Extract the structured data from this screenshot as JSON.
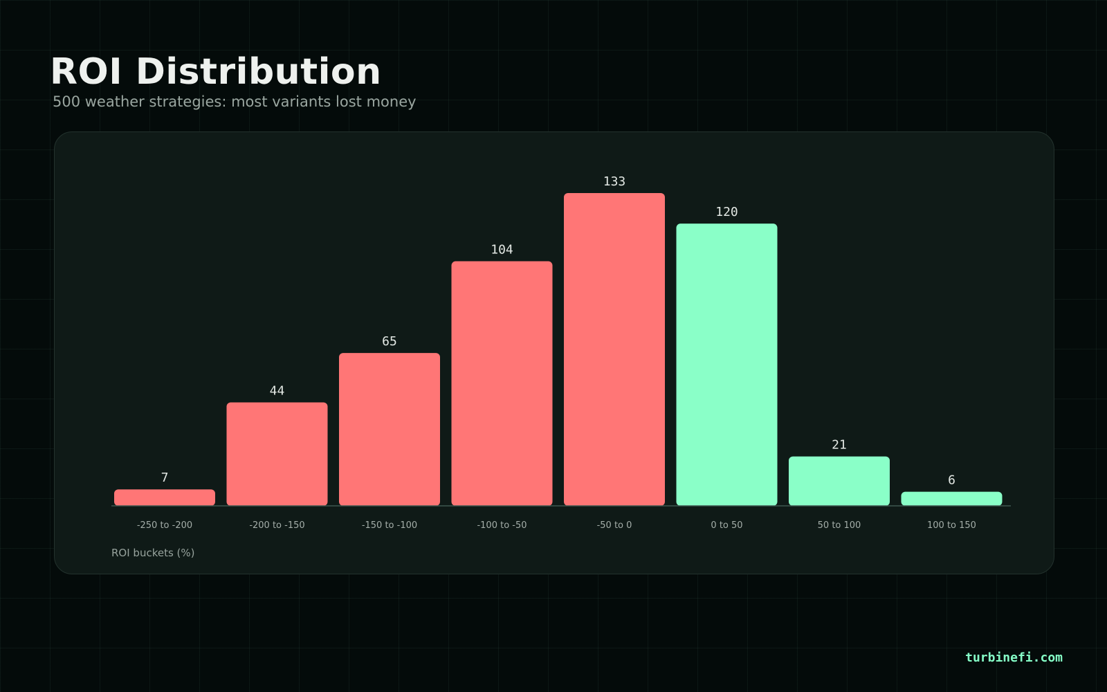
{
  "header": {
    "title": "ROI Distribution",
    "subtitle": "500 weather strategies: most variants lost money"
  },
  "footer": {
    "brand": "turbinefi.com"
  },
  "chart_data": {
    "type": "bar",
    "title": "ROI Distribution",
    "subtitle": "500 weather strategies: most variants lost money",
    "xlabel": "ROI buckets (%)",
    "ylabel": "",
    "categories": [
      "-250 to -200",
      "-200 to -150",
      "-150 to -100",
      "-100 to -50",
      "-50 to 0",
      "0 to 50",
      "50 to 100",
      "100 to 150"
    ],
    "values": [
      7,
      44,
      65,
      104,
      133,
      120,
      21,
      6
    ],
    "ylim": [
      0,
      133
    ],
    "grid": false,
    "legend": "none",
    "data_labels": true,
    "colors": {
      "negative": "#ff7676",
      "positive": "#8affc8",
      "axis": "#3f5750"
    }
  }
}
